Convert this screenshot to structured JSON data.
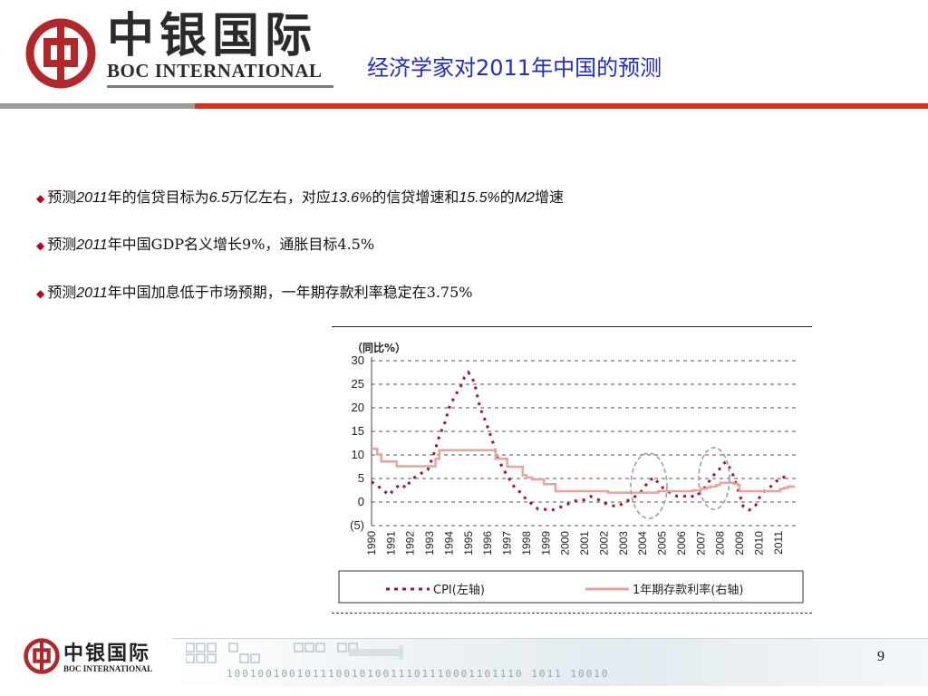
{
  "header": {
    "logo_cn": "中银国际",
    "logo_en": "BOC INTERNATIONAL",
    "title": "经济学家对2011年中国的预测"
  },
  "bullets": [
    {
      "parts": [
        {
          "t": "预测",
          "i": false
        },
        {
          "t": "2011",
          "i": true
        },
        {
          "t": "年的信贷目标为",
          "i": false
        },
        {
          "t": "6.5",
          "i": true
        },
        {
          "t": "万亿左右，对应",
          "i": false
        },
        {
          "t": "13.6%",
          "i": true
        },
        {
          "t": "的信贷增速和",
          "i": false
        },
        {
          "t": "15.5%",
          "i": true
        },
        {
          "t": "的",
          "i": false
        },
        {
          "t": "M2",
          "i": true
        },
        {
          "t": "增速",
          "i": false
        }
      ]
    },
    {
      "parts": [
        {
          "t": "预测",
          "i": false
        },
        {
          "t": "2011",
          "i": true
        },
        {
          "t": "年中国GDP名义增长9%，通胀目标4.5%",
          "i": false
        }
      ]
    },
    {
      "parts": [
        {
          "t": "预测",
          "i": false
        },
        {
          "t": "2011",
          "i": true
        },
        {
          "t": "年中国加息低于市场预期，一年期存款利率稳定在3.75%",
          "i": false
        }
      ]
    }
  ],
  "chart_data": {
    "type": "line",
    "unit_label": "（同比%）",
    "y_ticks": [
      "30",
      "25",
      "20",
      "15",
      "10",
      "5",
      "0",
      "(5)"
    ],
    "y_tick_values": [
      30,
      25,
      20,
      15,
      10,
      5,
      0,
      -5
    ],
    "ylim": [
      -5,
      30
    ],
    "x_ticks": [
      "1990",
      "1991",
      "1992",
      "1993",
      "1994",
      "1995",
      "1996",
      "1997",
      "1998",
      "1999",
      "2000",
      "2001",
      "2002",
      "2003",
      "2004",
      "2005",
      "2006",
      "2007",
      "2008",
      "2009",
      "2010",
      "2011"
    ],
    "xlim": [
      1990,
      2011.9
    ],
    "grid": true,
    "legend_position": "bottom",
    "series": [
      {
        "name": "CPI(左轴)",
        "style": "dotted",
        "color": "#a3132b",
        "x": [
          1990.0,
          1990.3,
          1990.6,
          1990.9,
          1991.2,
          1991.5,
          1991.8,
          1992.0,
          1992.3,
          1992.6,
          1992.9,
          1993.2,
          1993.5,
          1993.8,
          1994.0,
          1994.3,
          1994.6,
          1994.8,
          1995.0,
          1995.3,
          1995.6,
          1995.9,
          1996.2,
          1996.5,
          1996.8,
          1997.1,
          1997.4,
          1997.7,
          1998.0,
          1998.3,
          1998.6,
          1998.9,
          1999.2,
          1999.5,
          1999.8,
          2000.1,
          2000.4,
          2000.7,
          2001.0,
          2001.3,
          2001.6,
          2001.9,
          2002.2,
          2002.5,
          2002.8,
          2003.1,
          2003.4,
          2003.7,
          2004.0,
          2004.3,
          2004.6,
          2004.9,
          2005.2,
          2005.5,
          2005.8,
          2006.1,
          2006.4,
          2006.7,
          2007.0,
          2007.3,
          2007.6,
          2007.9,
          2008.1,
          2008.3,
          2008.6,
          2008.9,
          2009.2,
          2009.5,
          2009.8,
          2010.1,
          2010.4,
          2010.7,
          2011.0,
          2011.3,
          2011.6
        ],
        "y": [
          4.3,
          3.5,
          2.5,
          1.5,
          2.8,
          3.8,
          3.0,
          4.5,
          5.5,
          6.2,
          6.8,
          10.0,
          14.0,
          17.0,
          20.0,
          22.5,
          24.5,
          26.5,
          27.5,
          25.5,
          20.0,
          17.0,
          13.5,
          9.5,
          7.0,
          5.0,
          3.0,
          2.0,
          0.5,
          -0.5,
          -1.5,
          -1.5,
          -1.8,
          -1.5,
          -1.0,
          -0.5,
          0.2,
          0.3,
          0.5,
          1.2,
          0.8,
          0.0,
          -0.5,
          -0.8,
          -0.8,
          0.2,
          0.5,
          1.5,
          2.5,
          4.5,
          5.2,
          3.5,
          2.5,
          1.8,
          1.2,
          1.2,
          1.5,
          1.0,
          2.2,
          3.5,
          5.5,
          6.5,
          8.0,
          8.5,
          6.5,
          3.0,
          -1.0,
          -1.7,
          -1.0,
          1.5,
          2.8,
          3.5,
          4.8,
          5.3,
          5.5
        ]
      },
      {
        "name": "1年期存款利率(右轴)",
        "style": "solid",
        "color": "#e9a39c",
        "x": [
          1990.0,
          1990.3,
          1990.5,
          1991.0,
          1991.3,
          1991.5,
          1992.0,
          1993.0,
          1993.3,
          1993.5,
          1995.0,
          1996.0,
          1996.4,
          1996.7,
          1997.0,
          1997.8,
          1998.0,
          1998.3,
          1998.6,
          1998.9,
          1999.3,
          1999.5,
          2002.2,
          2004.8,
          2006.6,
          2007.0,
          2007.3,
          2007.5,
          2007.8,
          2008.0,
          2008.7,
          2008.9,
          2009.0,
          2010.8,
          2011.1,
          2011.3,
          2011.5,
          2011.8
        ],
        "y": [
          11.3,
          10.1,
          8.6,
          8.6,
          7.6,
          7.6,
          7.6,
          7.6,
          9.2,
          11.0,
          11.0,
          11.0,
          9.2,
          9.2,
          7.5,
          5.7,
          5.2,
          4.8,
          4.8,
          3.8,
          3.8,
          2.3,
          2.0,
          2.3,
          2.5,
          2.8,
          3.1,
          3.3,
          3.6,
          4.1,
          3.9,
          3.6,
          2.3,
          2.3,
          2.8,
          3.0,
          3.3,
          3.5
        ]
      }
    ],
    "annotations": [
      "circle 2004-2005",
      "circle 2008"
    ]
  },
  "footer": {
    "logo_cn": "中银国际",
    "logo_en": "BOC INTERNATIONAL",
    "bits": "10010010010111001010011101110001101110  1011  10010",
    "page_number": "9"
  },
  "colors": {
    "title_blue": "#1f2bd6",
    "brand_red": "#c0001e",
    "bar_red": "#d7311d"
  }
}
